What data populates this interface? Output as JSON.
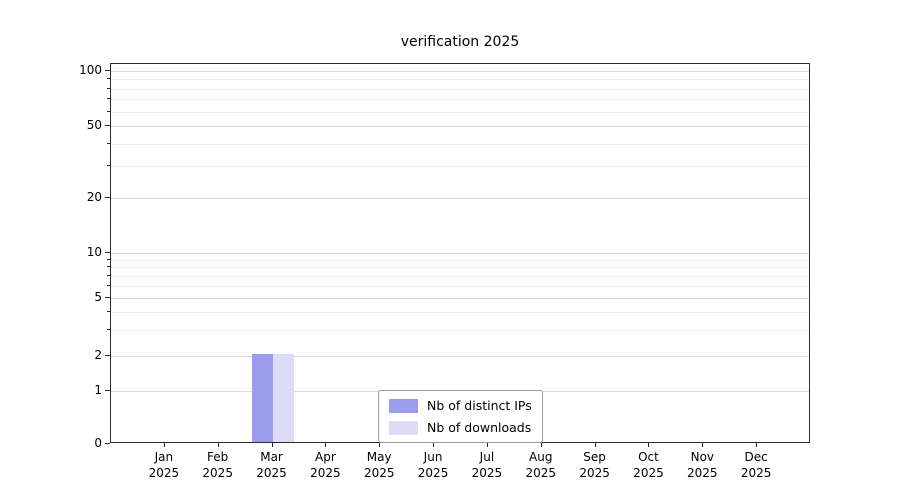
{
  "chart_data": {
    "type": "bar",
    "title": "verification 2025",
    "categories": [
      "Jan 2025",
      "Feb 2025",
      "Mar 2025",
      "Apr 2025",
      "May 2025",
      "Jun 2025",
      "Jul 2025",
      "Aug 2025",
      "Sep 2025",
      "Oct 2025",
      "Nov 2025",
      "Dec 2025"
    ],
    "series": [
      {
        "name": "Nb of distinct IPs",
        "color": "#9c9cee",
        "values": [
          0,
          0,
          2,
          0,
          0,
          0,
          0,
          0,
          0,
          0,
          0,
          0
        ]
      },
      {
        "name": "Nb of downloads",
        "color": "#dcdcf8",
        "values": [
          0,
          0,
          2,
          0,
          0,
          0,
          0,
          0,
          0,
          0,
          0,
          0
        ]
      }
    ],
    "yticks": [
      0,
      1,
      2,
      5,
      10,
      20,
      50,
      100
    ],
    "ylim": [
      0,
      100
    ],
    "yscale": "symlog",
    "grid": "horizontal",
    "legend_position": "bottom-center"
  }
}
